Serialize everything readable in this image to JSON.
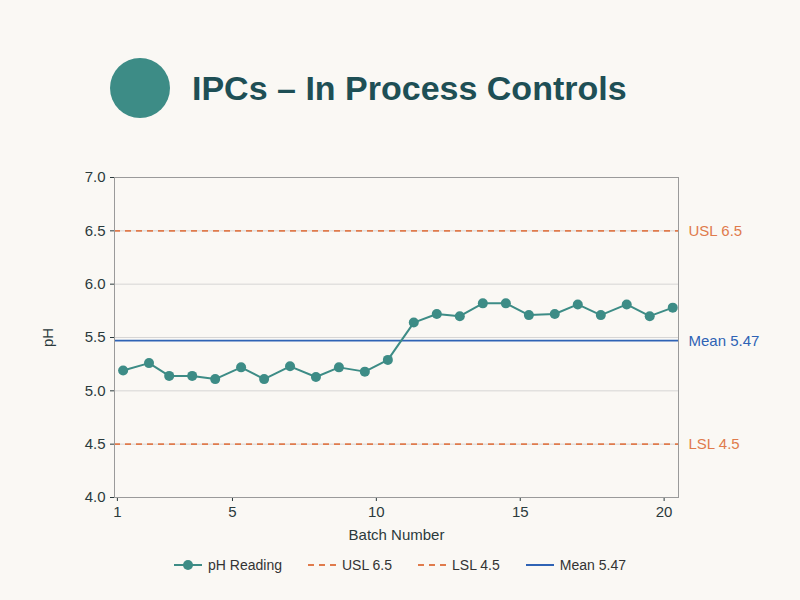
{
  "chart_data": {
    "type": "line",
    "title": "IPCs – In Process Controls",
    "x_label": "Batch Number",
    "y_label": "pH",
    "x": [
      1.2,
      2.1,
      2.8,
      3.6,
      4.4,
      5.3,
      6.1,
      7.0,
      7.9,
      8.7,
      9.6,
      10.4,
      11.3,
      12.1,
      12.9,
      13.7,
      14.5,
      15.3,
      16.2,
      17.0,
      17.8,
      18.7,
      19.5,
      20.3
    ],
    "series": [
      {
        "name": "pH Reading",
        "color": "#3d8c86",
        "marker": "circle",
        "line_style": "solid",
        "values": [
          5.19,
          5.26,
          5.14,
          5.14,
          5.11,
          5.22,
          5.11,
          5.23,
          5.13,
          5.22,
          5.18,
          5.29,
          5.64,
          5.72,
          5.7,
          5.82,
          5.82,
          5.71,
          5.72,
          5.81,
          5.71,
          5.81,
          5.7,
          5.78
        ]
      }
    ],
    "reference_lines": [
      {
        "name": "USL 6.5",
        "value": 6.5,
        "color": "#e07b4c",
        "line_style": "dashed"
      },
      {
        "name": "LSL 4.5",
        "value": 4.5,
        "color": "#e07b4c",
        "line_style": "dashed"
      },
      {
        "name": "Mean 5.47",
        "value": 5.47,
        "color": "#2f63b5",
        "line_style": "solid"
      }
    ],
    "xlim": [
      0.9,
      20.5
    ],
    "xticks": [
      1,
      5,
      10,
      15,
      20
    ],
    "ylim": [
      4,
      7
    ],
    "yticks": [
      {
        "value": 4,
        "label": "4.0"
      },
      4.5,
      {
        "value": 5,
        "label": "5.0"
      },
      5.5,
      {
        "value": 6,
        "label": "6.0"
      },
      6.5,
      {
        "value": 7,
        "label": "7.0"
      }
    ],
    "grid": true,
    "legend": "bottom"
  }
}
